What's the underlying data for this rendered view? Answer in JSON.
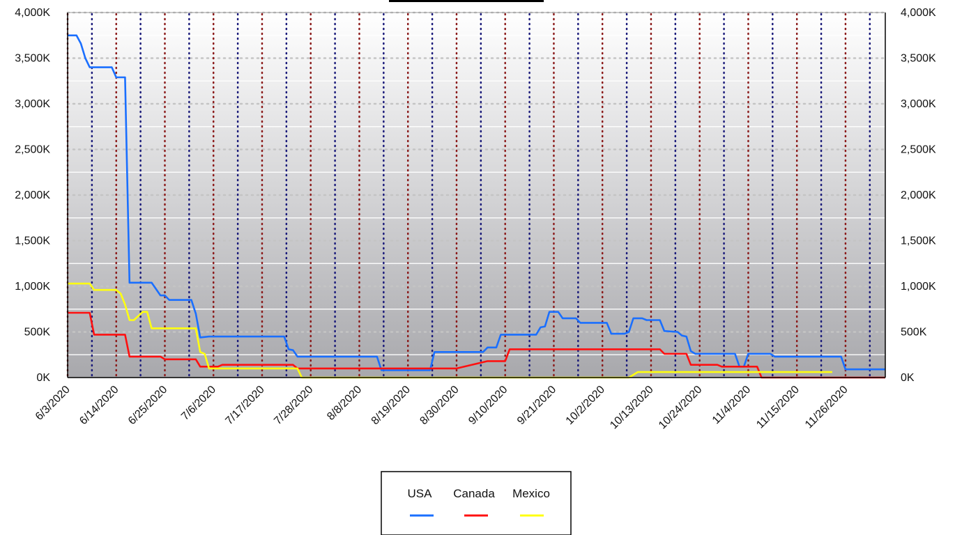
{
  "chart_data": {
    "type": "line",
    "title": "",
    "xlabel": "",
    "ylabel": "",
    "ylim": [
      0,
      4000
    ],
    "y_unit_suffix": "K",
    "y_ticks": [
      0,
      500,
      1000,
      1500,
      2000,
      2500,
      3000,
      3500,
      4000
    ],
    "y_tick_labels": [
      "0K",
      "500K",
      "1,000K",
      "1,500K",
      "2,000K",
      "2,500K",
      "3,000K",
      "3,500K",
      "4,000K"
    ],
    "secondary_axis_tick_labels": [
      "0K",
      "500K",
      "1,000K",
      "1,500K",
      "2,000K",
      "2,500K",
      "3,000K",
      "3,500K",
      "4,000K"
    ],
    "x_range": [
      "6/3/2020",
      "12/5/2020"
    ],
    "x_tick_labels": [
      "6/3/2020",
      "6/14/2020",
      "6/25/2020",
      "7/6/2020",
      "7/17/2020",
      "7/28/2020",
      "8/8/2020",
      "8/19/2020",
      "8/30/2020",
      "9/10/2020",
      "9/21/2020",
      "10/2/2020",
      "10/13/2020",
      "10/24/2020",
      "11/4/2020",
      "11/15/2020",
      "11/26/2020"
    ],
    "grid": true,
    "legend_position": "bottom-center",
    "series": [
      {
        "name": "USA",
        "color": "#1a6fff",
        "points": [
          [
            "6/3/2020",
            3750
          ],
          [
            "6/5/2020",
            3750
          ],
          [
            "6/6/2020",
            3660
          ],
          [
            "6/7/2020",
            3500
          ],
          [
            "6/8/2020",
            3400
          ],
          [
            "6/13/2020",
            3400
          ],
          [
            "6/14/2020",
            3290
          ],
          [
            "6/16/2020",
            3290
          ],
          [
            "6/17/2020",
            1040
          ],
          [
            "6/22/2020",
            1040
          ],
          [
            "6/24/2020",
            900
          ],
          [
            "6/25/2020",
            900
          ],
          [
            "6/26/2020",
            850
          ],
          [
            "7/1/2020",
            850
          ],
          [
            "7/2/2020",
            700
          ],
          [
            "7/3/2020",
            440
          ],
          [
            "7/5/2020",
            450
          ],
          [
            "7/22/2020",
            450
          ],
          [
            "7/23/2020",
            310
          ],
          [
            "7/24/2020",
            300
          ],
          [
            "7/25/2020",
            230
          ],
          [
            "8/12/2020",
            230
          ],
          [
            "8/13/2020",
            80
          ],
          [
            "8/24/2020",
            80
          ],
          [
            "8/25/2020",
            280
          ],
          [
            "9/5/2020",
            280
          ],
          [
            "9/6/2020",
            330
          ],
          [
            "9/8/2020",
            330
          ],
          [
            "9/9/2020",
            470
          ],
          [
            "9/17/2020",
            470
          ],
          [
            "9/18/2020",
            550
          ],
          [
            "9/19/2020",
            560
          ],
          [
            "9/20/2020",
            720
          ],
          [
            "9/22/2020",
            720
          ],
          [
            "9/23/2020",
            650
          ],
          [
            "9/26/2020",
            650
          ],
          [
            "9/27/2020",
            600
          ],
          [
            "10/3/2020",
            600
          ],
          [
            "10/4/2020",
            480
          ],
          [
            "10/7/2020",
            480
          ],
          [
            "10/8/2020",
            500
          ],
          [
            "10/9/2020",
            650
          ],
          [
            "10/11/2020",
            650
          ],
          [
            "10/12/2020",
            630
          ],
          [
            "10/15/2020",
            630
          ],
          [
            "10/16/2020",
            510
          ],
          [
            "10/19/2020",
            500
          ],
          [
            "10/20/2020",
            460
          ],
          [
            "10/21/2020",
            450
          ],
          [
            "10/22/2020",
            290
          ],
          [
            "10/23/2020",
            260
          ],
          [
            "11/1/2020",
            260
          ],
          [
            "11/2/2020",
            120
          ],
          [
            "11/3/2020",
            120
          ],
          [
            "11/4/2020",
            260
          ],
          [
            "11/9/2020",
            260
          ],
          [
            "11/10/2020",
            230
          ],
          [
            "11/25/2020",
            230
          ],
          [
            "11/26/2020",
            90
          ],
          [
            "12/5/2020",
            90
          ]
        ]
      },
      {
        "name": "Canada",
        "color": "#ff1010",
        "points": [
          [
            "6/3/2020",
            710
          ],
          [
            "6/8/2020",
            710
          ],
          [
            "6/9/2020",
            470
          ],
          [
            "6/16/2020",
            470
          ],
          [
            "6/17/2020",
            230
          ],
          [
            "6/24/2020",
            230
          ],
          [
            "6/25/2020",
            200
          ],
          [
            "7/2/2020",
            200
          ],
          [
            "7/3/2020",
            120
          ],
          [
            "7/7/2020",
            120
          ],
          [
            "7/8/2020",
            140
          ],
          [
            "7/24/2020",
            140
          ],
          [
            "7/25/2020",
            100
          ],
          [
            "8/30/2020",
            100
          ],
          [
            "9/6/2020",
            180
          ],
          [
            "9/10/2020",
            180
          ],
          [
            "9/11/2020",
            310
          ],
          [
            "10/15/2020",
            310
          ],
          [
            "10/16/2020",
            260
          ],
          [
            "10/21/2020",
            260
          ],
          [
            "10/22/2020",
            140
          ],
          [
            "10/28/2020",
            140
          ],
          [
            "10/29/2020",
            120
          ],
          [
            "11/6/2020",
            120
          ],
          [
            "11/7/2020",
            0
          ],
          [
            "12/5/2020",
            0
          ]
        ]
      },
      {
        "name": "Mexico",
        "color": "#ffff10",
        "points": [
          [
            "6/3/2020",
            1030
          ],
          [
            "6/8/2020",
            1030
          ],
          [
            "6/9/2020",
            960
          ],
          [
            "6/14/2020",
            960
          ],
          [
            "6/15/2020",
            920
          ],
          [
            "6/16/2020",
            800
          ],
          [
            "6/17/2020",
            630
          ],
          [
            "6/18/2020",
            630
          ],
          [
            "6/20/2020",
            720
          ],
          [
            "6/21/2020",
            720
          ],
          [
            "6/22/2020",
            540
          ],
          [
            "6/23/2020",
            540
          ],
          [
            "7/2/2020",
            540
          ],
          [
            "7/3/2020",
            280
          ],
          [
            "7/4/2020",
            260
          ],
          [
            "7/5/2020",
            100
          ],
          [
            "7/25/2020",
            100
          ],
          [
            "7/26/2020",
            0
          ],
          [
            "10/8/2020",
            0
          ],
          [
            "10/10/2020",
            60
          ],
          [
            "11/23/2020",
            60
          ]
        ]
      }
    ]
  }
}
